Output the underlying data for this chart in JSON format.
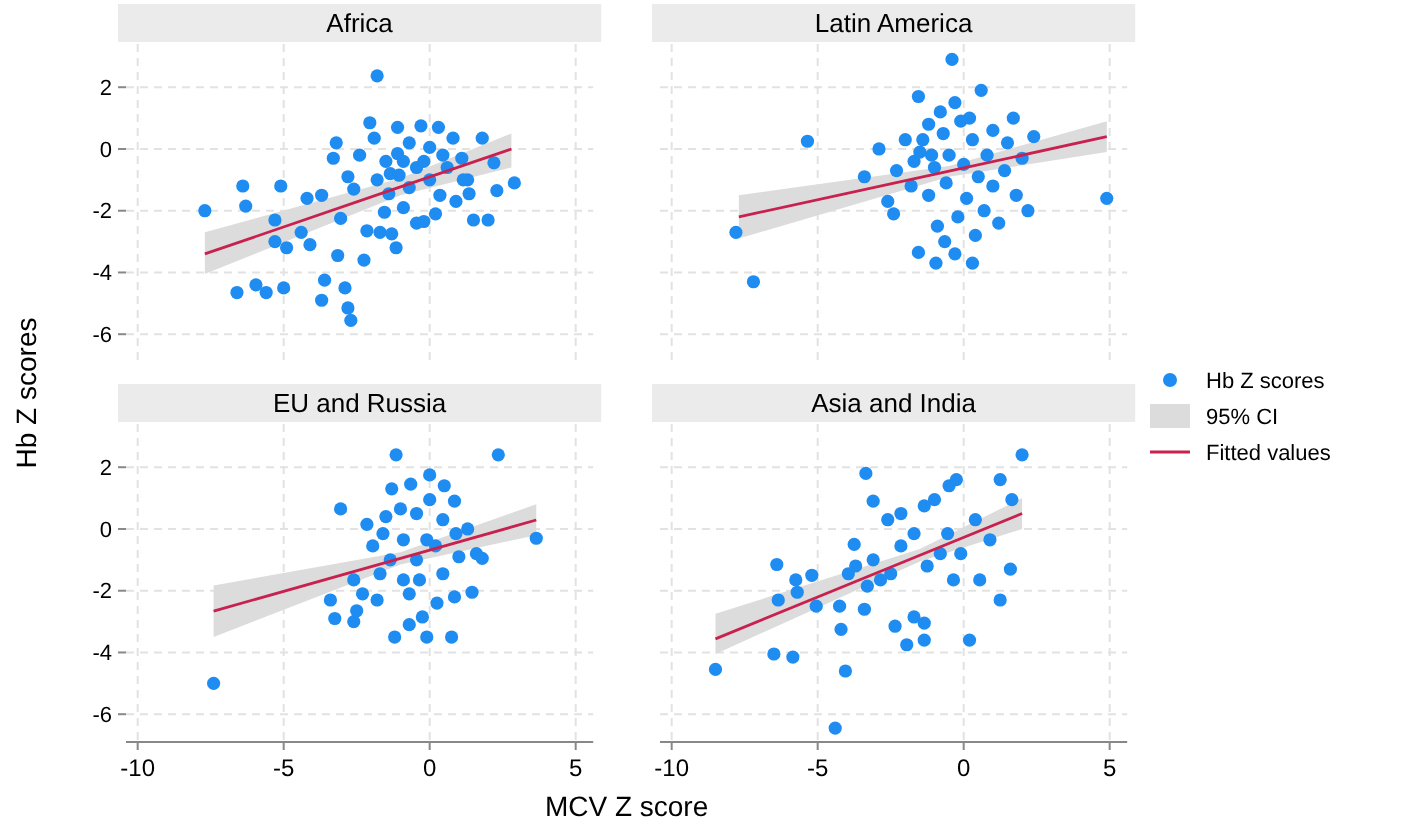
{
  "chart_data": [
    {
      "type": "scatter",
      "title": "Africa",
      "ylabel": "Hb Z scores",
      "xlim": [
        -10.4,
        5.6
      ],
      "ylim": [
        -6.9,
        3.4
      ],
      "xticks": [
        -10,
        -5,
        0,
        5
      ],
      "yticks": [
        -6,
        -4,
        -2,
        0,
        2
      ],
      "grid": true,
      "tick_labels": "y",
      "series": [
        {
          "color": "#1e8cf0",
          "marker": "circle",
          "x": [
            -1.8,
            -7.7,
            -6.6,
            -5.95,
            -5.6,
            -5.0,
            -6.4,
            -6.3,
            -5.1,
            -5.3,
            -4.9,
            -5.3,
            -4.4,
            -4.1,
            -4.2,
            -3.7,
            -3.6,
            -3.7,
            -2.9,
            -2.8,
            -2.7,
            -3.15,
            -3.05,
            -3.3,
            -3.2,
            -2.8,
            -2.6,
            -2.25,
            -2.4,
            -2.05,
            -1.9,
            -2.15,
            -1.7,
            -1.55,
            -1.4,
            -1.5,
            -1.3,
            -1.15,
            -1.1,
            -1.05,
            -0.9,
            -1.1,
            -0.7,
            -0.45,
            -0.2,
            -0.3,
            -0.2,
            0,
            0.3,
            0.2,
            0.35,
            0.6,
            0.8,
            1.1,
            1.35,
            1.3,
            1.5,
            1.8,
            2.0,
            2.2,
            2.3,
            2.9,
            0.9,
            -0.7,
            -1.8,
            -0.45,
            0,
            0.45,
            1.15,
            -0.9,
            -1.35
          ],
          "values": [
            2.37,
            -2.0,
            -4.65,
            -4.4,
            -4.65,
            -4.5,
            -1.2,
            -1.85,
            -1.2,
            -2.3,
            -3.2,
            -3.0,
            -2.7,
            -3.1,
            -1.6,
            -1.5,
            -4.25,
            -4.9,
            -4.5,
            -5.15,
            -5.55,
            -3.45,
            -2.25,
            -0.3,
            0.2,
            -0.9,
            -1.3,
            -3.6,
            -0.2,
            0.85,
            0.35,
            -2.65,
            -2.7,
            -2.05,
            -1.45,
            -0.4,
            -2.75,
            -3.2,
            0.7,
            -0.85,
            -1.9,
            -0.15,
            0.2,
            -2.4,
            -2.35,
            0.75,
            -0.4,
            -1.0,
            0.7,
            -2.1,
            -1.5,
            -0.6,
            0.35,
            -0.3,
            -1.45,
            -1.0,
            -2.3,
            0.35,
            -2.3,
            -0.45,
            -1.35,
            -1.1,
            -1.7,
            -1.25,
            -1.0,
            -0.6,
            0.05,
            -0.2,
            -1.0,
            -0.4,
            -0.8
          ]
        },
        {
          "type": "line",
          "marker": "none",
          "color": "#c8204f",
          "x": [
            -7.7,
            -1,
            2.8
          ],
          "values": [
            -3.4,
            -1.23,
            0
          ],
          "lower": [
            -4.05,
            -1.5,
            -0.6
          ],
          "upper": [
            -2.7,
            -0.95,
            0.5
          ]
        }
      ]
    },
    {
      "type": "scatter",
      "title": "Latin America",
      "xlim": [
        -10.4,
        5.6
      ],
      "ylim": [
        -6.9,
        3.4
      ],
      "xticks": [
        -10,
        -5,
        0,
        5
      ],
      "yticks": [
        -6,
        -4,
        -2,
        0,
        2
      ],
      "grid": true,
      "tick_labels": false,
      "legend": "right",
      "annotations": [
        "95% CI"
      ],
      "series": [
        {
          "name": "Hb Z scores",
          "marker": "circle",
          "color": "#1e8cf0",
          "x": [
            -1.55,
            -5.35,
            -2.9,
            -3.4,
            -7.8,
            -7.2,
            -1.55,
            -0.95,
            -0.65,
            -2.6,
            -2.4,
            -1.7,
            -0.4,
            4.9,
            -1.2,
            -0.8,
            -0.3,
            0.2,
            0.6,
            1.0,
            1.5,
            2.0,
            2.4,
            -2.0,
            -1.5,
            -1.0,
            -0.5,
            0,
            0.5,
            1.0,
            1.4,
            -1.8,
            -1.2,
            -0.6,
            0.1,
            0.7,
            1.2,
            -0.2,
            -0.9,
            0.4,
            -0.3,
            0.3,
            1.8,
            2.2,
            -1.4,
            -0.7,
            0.3,
            0.8,
            -2.3,
            -0.1,
            1.7,
            -1.1
          ],
          "values": [
            1.7,
            0.25,
            0,
            -0.9,
            -2.7,
            -4.3,
            -3.35,
            -3.7,
            -3.0,
            -1.7,
            -2.1,
            -0.4,
            2.9,
            -1.6,
            0.8,
            1.2,
            1.5,
            1.0,
            1.9,
            0.6,
            0.2,
            -0.3,
            0.4,
            0.3,
            -0.1,
            -0.6,
            -0.2,
            -0.5,
            -0.9,
            -1.2,
            -0.7,
            -1.2,
            -1.5,
            -1.1,
            -1.6,
            -2.0,
            -2.4,
            -2.2,
            -2.5,
            -2.8,
            -3.4,
            -3.7,
            -1.5,
            -2.0,
            0.3,
            0.5,
            0.3,
            -0.2,
            -0.7,
            0.9,
            1.0,
            -0.2
          ]
        },
        {
          "name": "Fitted values",
          "type": "line",
          "marker": "none",
          "color": "#c8204f",
          "x": [
            -7.7,
            -0.5,
            4.9
          ],
          "values": [
            -2.2,
            -0.72,
            0.4
          ],
          "lower": [
            -2.9,
            -0.9,
            -0.1
          ],
          "upper": [
            -1.5,
            -0.55,
            0.9
          ]
        }
      ]
    },
    {
      "type": "scatter",
      "title": "EU and Russia",
      "xlabel": "MCV Z score",
      "xlim": [
        -10.4,
        5.6
      ],
      "ylim": [
        -6.9,
        3.4
      ],
      "xticks": [
        -10,
        -5,
        0,
        5
      ],
      "yticks": [
        -6,
        -4,
        -2,
        0,
        2
      ],
      "grid": true,
      "series": [
        {
          "color": "#1e8cf0",
          "marker": "circle",
          "x": [
            -1.15,
            2.35,
            -3.05,
            -7.4,
            3.65,
            -3.4,
            -3.25,
            -2.6,
            -2.5,
            -1.2,
            -0.7,
            -0.1,
            0.75,
            1.45,
            0.85,
            0.25,
            -1.3,
            -0.65,
            0,
            0.5,
            0.85,
            1.3,
            1.6,
            1.8,
            -2.15,
            -1.95,
            -1.7,
            -2.3,
            -0.9,
            -0.45,
            -0.9,
            -0.45,
            0,
            0.45,
            1.0,
            0.45,
            -1.5,
            -0.1,
            -1.35,
            -0.7,
            -0.25,
            -1.8,
            -1.0,
            0.2,
            0.9,
            -1.6,
            -0.35,
            -2.6
          ],
          "values": [
            2.4,
            2.4,
            0.65,
            -5.0,
            -0.3,
            -2.3,
            -2.9,
            -3.0,
            -2.65,
            -3.5,
            -3.1,
            -3.5,
            -3.5,
            -2.05,
            -2.2,
            -2.4,
            1.3,
            1.45,
            1.75,
            1.4,
            0.9,
            0,
            -0.8,
            -0.95,
            0.15,
            -0.55,
            -1.45,
            -2.1,
            -1.65,
            -1.0,
            -0.35,
            0.5,
            0.95,
            0.3,
            -0.9,
            -1.45,
            0.4,
            -0.35,
            -1.0,
            -2.1,
            -2.85,
            -2.3,
            0.65,
            -0.55,
            -0.15,
            -0.15,
            -1.65,
            -1.65
          ]
        },
        {
          "type": "line",
          "marker": "none",
          "color": "#c8204f",
          "x": [
            -7.4,
            -1,
            3.65
          ],
          "values": [
            -2.66,
            -0.95,
            0.29
          ],
          "lower": [
            -3.5,
            -1.15,
            -0.2
          ],
          "upper": [
            -1.83,
            -0.75,
            0.8
          ]
        }
      ]
    },
    {
      "type": "scatter",
      "title": "Asia and India",
      "xlim": [
        -10.4,
        5.6
      ],
      "ylim": [
        -6.9,
        3.4
      ],
      "xticks": [
        -10,
        -5,
        0,
        5
      ],
      "yticks": [
        -6,
        -4,
        -2,
        0,
        2
      ],
      "grid": true,
      "tick_labels": "x",
      "series": [
        {
          "color": "#1e8cf0",
          "marker": "circle",
          "x": [
            -8.5,
            -6.5,
            -5.85,
            -4.05,
            -4.4,
            -6.4,
            -6.35,
            -5.75,
            -5.7,
            -5.2,
            -5.05,
            -4.25,
            -4.2,
            -3.95,
            -3.7,
            -3.4,
            -3.35,
            -3.1,
            -3.3,
            -3.75,
            -3.1,
            -2.6,
            -2.5,
            -2.35,
            -1.95,
            -1.7,
            -1.35,
            -1.35,
            -2.15,
            -1.7,
            -1.35,
            -1.0,
            -0.5,
            -0.8,
            -0.35,
            -0.55,
            -2.15,
            -2.85,
            -1.25,
            -0.1,
            2.0,
            1.25,
            1.65,
            0.9,
            0.55,
            1.25,
            0.2,
            -0.25,
            0.4,
            1.6
          ],
          "values": [
            -4.55,
            -4.05,
            -4.15,
            -4.6,
            -6.45,
            -1.15,
            -2.3,
            -1.65,
            -2.05,
            -1.5,
            -2.5,
            -2.5,
            -3.25,
            -1.45,
            -1.2,
            -2.6,
            1.8,
            0.9,
            -1.85,
            -0.5,
            -1.0,
            0.3,
            -1.45,
            -3.15,
            -3.75,
            -2.85,
            -3.05,
            -3.6,
            -0.55,
            -0.15,
            0.75,
            0.95,
            1.4,
            -0.8,
            -1.65,
            -0.15,
            0.5,
            -1.65,
            -1.2,
            -0.8,
            2.4,
            1.6,
            0.95,
            -0.35,
            -1.65,
            -2.3,
            -3.6,
            1.6,
            0.3,
            -1.3
          ]
        },
        {
          "type": "line",
          "marker": "none",
          "color": "#c8204f",
          "x": [
            -8.5,
            -1.5,
            2.0
          ],
          "values": [
            -3.56,
            -0.85,
            0.5
          ],
          "lower": [
            -4.05,
            -1.05,
            0
          ],
          "upper": [
            -2.75,
            -0.65,
            1.0
          ]
        }
      ]
    }
  ]
}
